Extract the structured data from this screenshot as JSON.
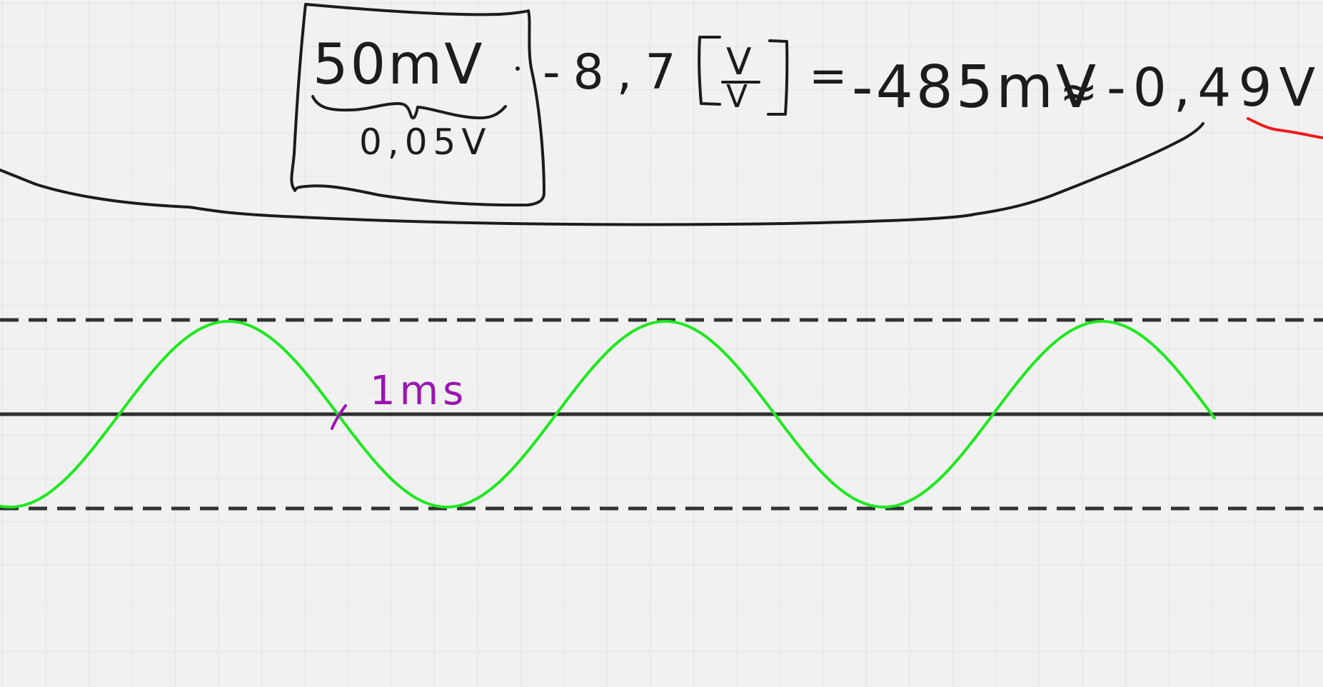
{
  "page": {
    "background": "#f1f1f1",
    "grid_color": "#e2e2e2"
  },
  "equation": {
    "numerator": "50mV",
    "denominator": "0,05V",
    "factor": "-8,7",
    "unit_bracket_num": "V",
    "unit_bracket_den": "V",
    "equals": "=",
    "result_mv": "-485mV",
    "approx": "≈",
    "result_v": "-0,49V"
  },
  "annotations": {
    "period_label": "1ms"
  },
  "colors": {
    "ink": "#1c1c1c",
    "wave": "#1ee81e",
    "marker": "#9a16b0",
    "red_stroke": "#ef1a1a"
  }
}
